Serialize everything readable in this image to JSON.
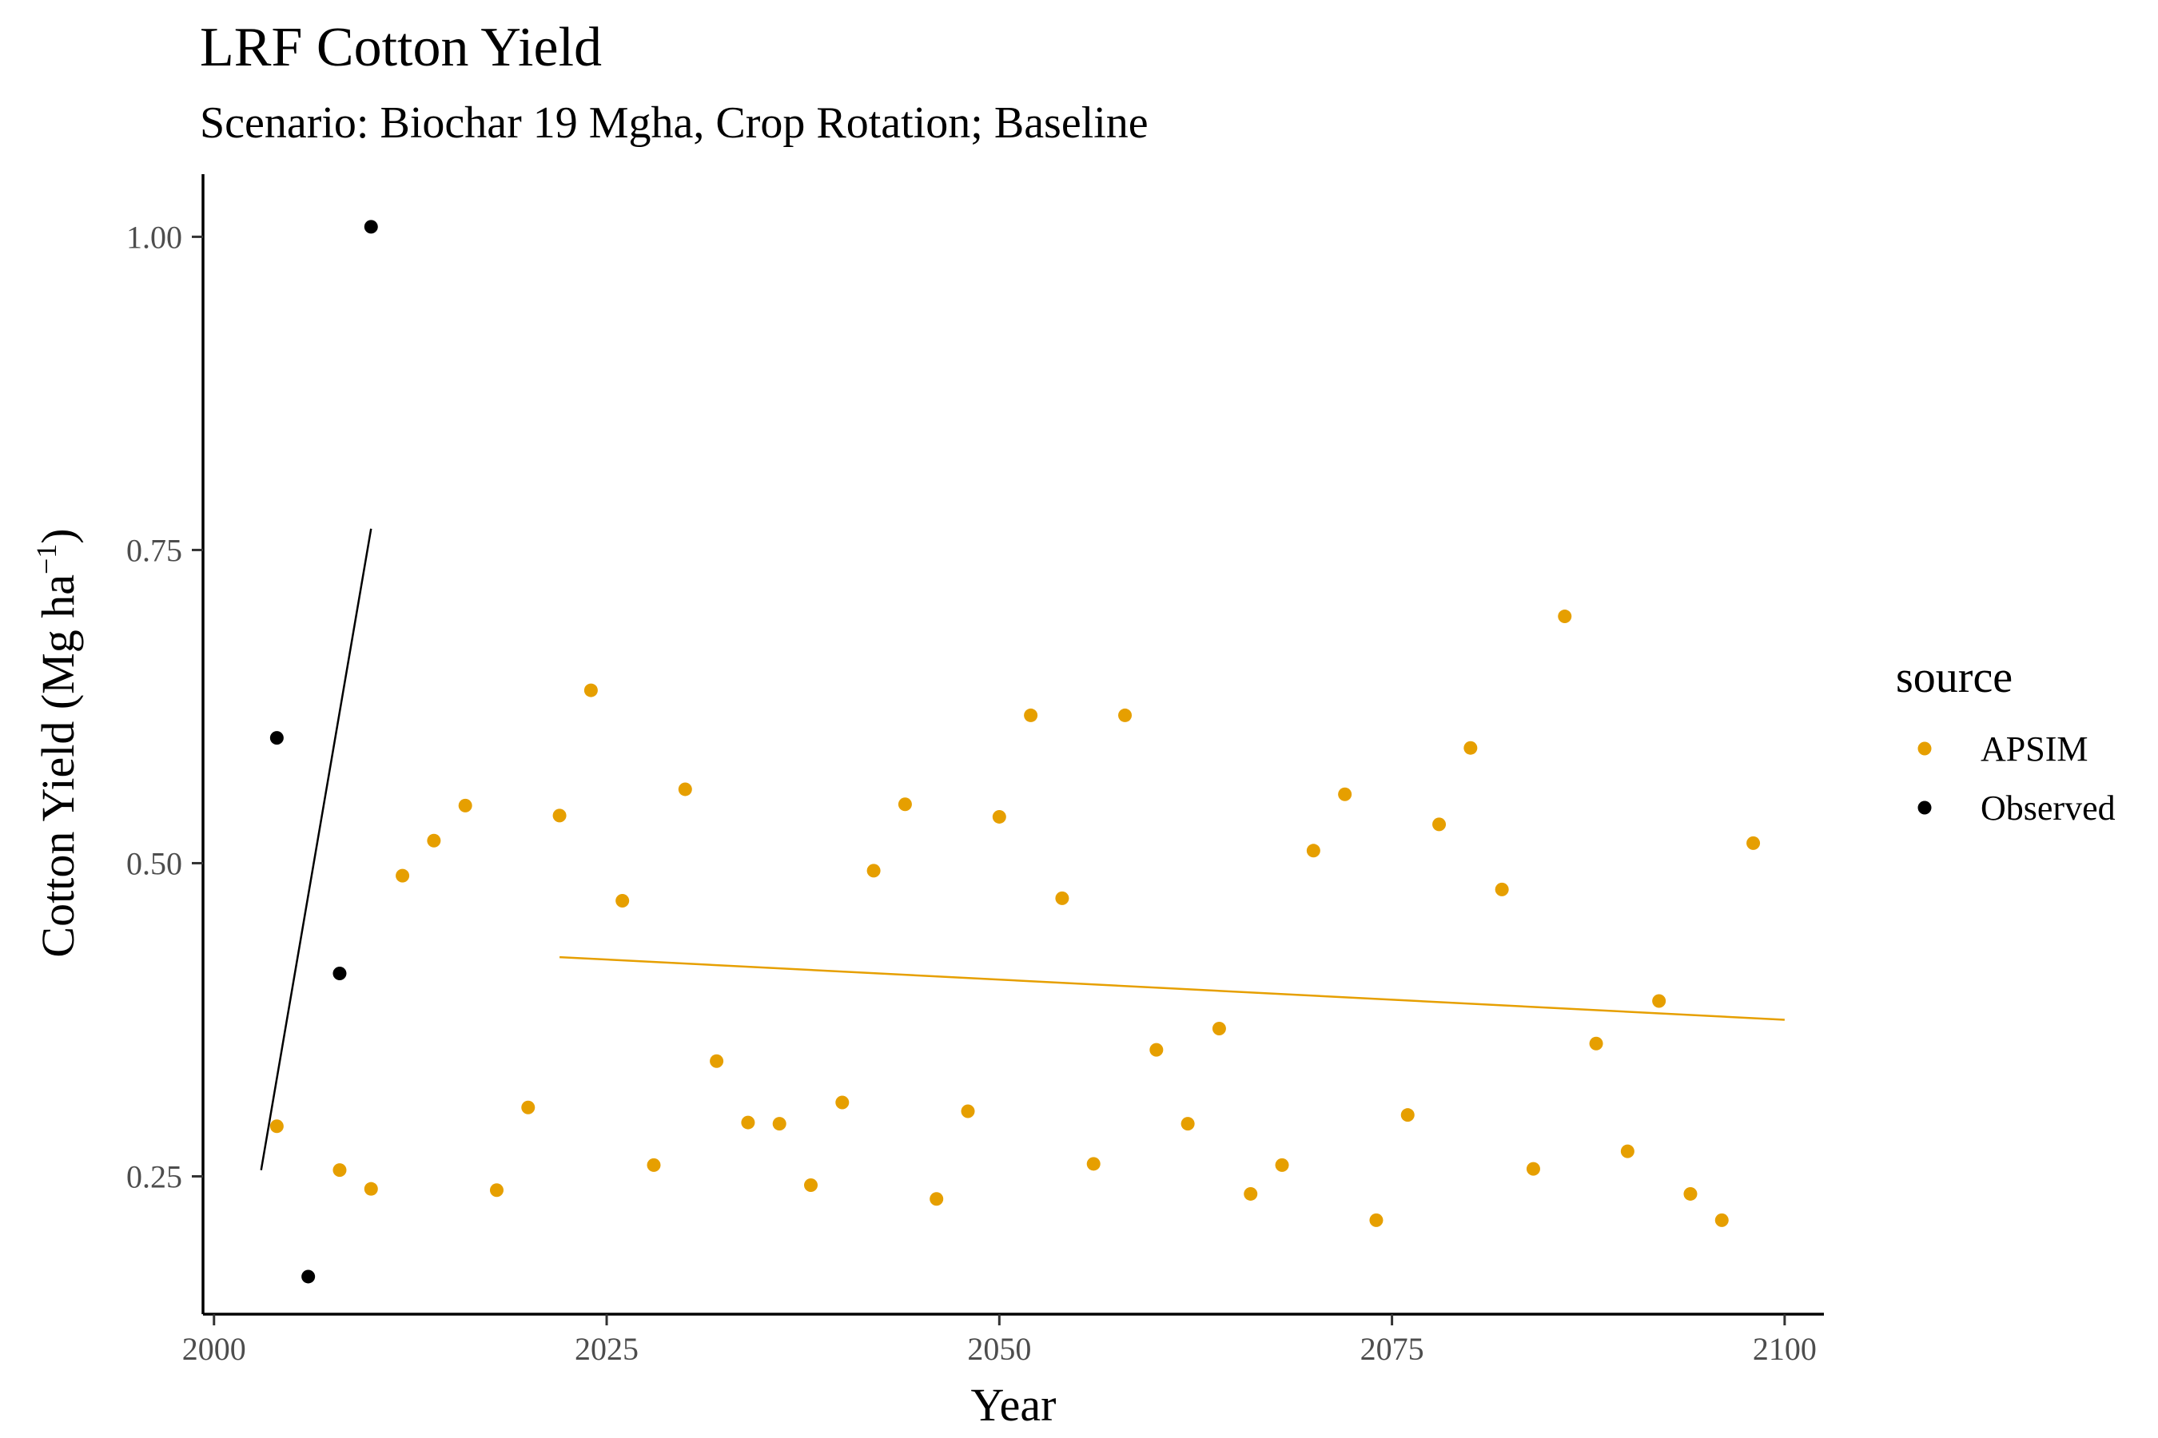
{
  "chart_data": {
    "type": "scatter",
    "title": "LRF Cotton Yield",
    "subtitle": "Scenario: Biochar 19 Mgha, Crop Rotation; Baseline",
    "xlabel": "Year",
    "ylabel_text": "Cotton Yield (Mg ha",
    "ylabel_superscript": "−1",
    "ylabel_close": ")",
    "xlim": [
      1999.3,
      2102.5
    ],
    "ylim": [
      0.14,
      1.05
    ],
    "x_ticks": [
      2000,
      2025,
      2050,
      2075,
      2100
    ],
    "x_tick_labels": [
      "2000",
      "2025",
      "2050",
      "2075",
      "2100"
    ],
    "y_ticks": [
      0.25,
      0.5,
      0.75,
      1.0
    ],
    "y_tick_labels": [
      "0.25",
      "0.50",
      "0.75",
      "1.00"
    ],
    "grid": false,
    "legend": {
      "title": "source",
      "position": "right",
      "entries": [
        {
          "label": "APSIM",
          "color": "#E69F00"
        },
        {
          "label": "Observed",
          "color": "#000000"
        }
      ]
    },
    "series": [
      {
        "name": "APSIM",
        "color": "#E69F00",
        "points": [
          [
            2004,
            0.29
          ],
          [
            2008,
            0.255
          ],
          [
            2010,
            0.24
          ],
          [
            2012,
            0.49
          ],
          [
            2014,
            0.518
          ],
          [
            2016,
            0.546
          ],
          [
            2018,
            0.239
          ],
          [
            2020,
            0.305
          ],
          [
            2022,
            0.538
          ],
          [
            2024,
            0.638
          ],
          [
            2026,
            0.47
          ],
          [
            2028,
            0.259
          ],
          [
            2030,
            0.559
          ],
          [
            2032,
            0.342
          ],
          [
            2034,
            0.293
          ],
          [
            2036,
            0.292
          ],
          [
            2038,
            0.243
          ],
          [
            2040,
            0.309
          ],
          [
            2042,
            0.494
          ],
          [
            2044,
            0.547
          ],
          [
            2046,
            0.232
          ],
          [
            2048,
            0.302
          ],
          [
            2050,
            0.537
          ],
          [
            2052,
            0.618
          ],
          [
            2054,
            0.472
          ],
          [
            2056,
            0.26
          ],
          [
            2058,
            0.618
          ],
          [
            2060,
            0.351
          ],
          [
            2062,
            0.292
          ],
          [
            2064,
            0.368
          ],
          [
            2066,
            0.236
          ],
          [
            2068,
            0.259
          ],
          [
            2070,
            0.51
          ],
          [
            2072,
            0.555
          ],
          [
            2074,
            0.215
          ],
          [
            2076,
            0.299
          ],
          [
            2078,
            0.531
          ],
          [
            2080,
            0.592
          ],
          [
            2082,
            0.479
          ],
          [
            2084,
            0.256
          ],
          [
            2086,
            0.697
          ],
          [
            2088,
            0.356
          ],
          [
            2090,
            0.27
          ],
          [
            2092,
            0.39
          ],
          [
            2094,
            0.236
          ],
          [
            2096,
            0.215
          ],
          [
            2098,
            0.516
          ]
        ],
        "trend": {
          "x": [
            2022,
            2100
          ],
          "y": [
            0.425,
            0.375
          ]
        }
      },
      {
        "name": "Observed",
        "color": "#000000",
        "points": [
          [
            2004,
            0.6
          ],
          [
            2006,
            0.17
          ],
          [
            2008,
            0.412
          ],
          [
            2010,
            1.008
          ]
        ],
        "trend": {
          "x": [
            2003,
            2010
          ],
          "y": [
            0.255,
            0.767
          ]
        }
      }
    ]
  }
}
